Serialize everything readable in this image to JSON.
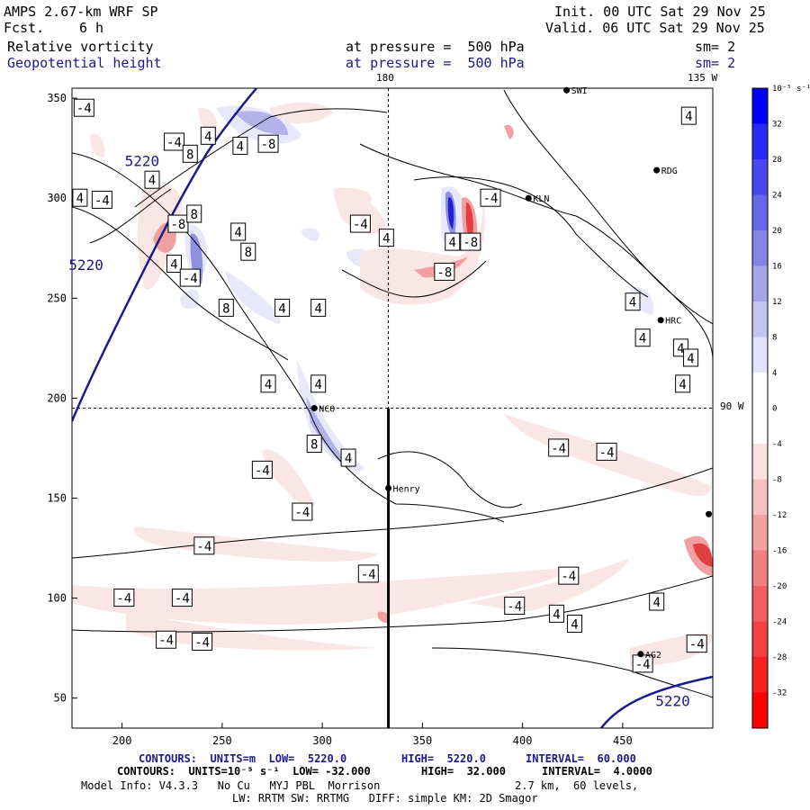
{
  "header": {
    "model": "AMPS 2.67-km WRF SP",
    "fcst_label": "Fcst.",
    "fcst_value": "6 h",
    "init": "Init. 00 UTC Sat 29 Nov 25",
    "valid": "Valid. 06 UTC Sat 29 Nov 25",
    "field1": "Relative vorticity",
    "field2": "Geopotential height",
    "pressure1": "at pressure =  500 hPa",
    "pressure2": "at pressure =  500 hPa",
    "smooth1": "sm= 2",
    "smooth2": "sm= 2"
  },
  "map_labels": {
    "lon_top": "180",
    "lon_top_right": "135 W",
    "lat_right": "90 W"
  },
  "stations": [
    {
      "name": "NCO",
      "x": 296,
      "y": 195
    },
    {
      "name": "Henry",
      "x": 333,
      "y": 155
    },
    {
      "name": "KLN",
      "x": 403,
      "y": 300
    },
    {
      "name": "RDG",
      "x": 467,
      "y": 314
    },
    {
      "name": "HRC",
      "x": 469,
      "y": 239
    },
    {
      "name": "AG2",
      "x": 459,
      "y": 72
    },
    {
      "name": "SWI",
      "x": 422,
      "y": 354
    },
    {
      "name": "",
      "x": 493,
      "y": 142
    }
  ],
  "chart_data": {
    "type": "heatmap",
    "title": "Relative vorticity / Geopotential height at 500 hPa",
    "xlim": [
      175,
      495
    ],
    "ylim": [
      35,
      355
    ],
    "x_ticks": [
      200,
      250,
      300,
      350,
      400,
      450
    ],
    "y_ticks": [
      50,
      100,
      150,
      200,
      250,
      300,
      350
    ],
    "crosshair": {
      "x": 333,
      "y": 195
    },
    "vorticity_contour_labels": [
      {
        "v": "-4",
        "x": 181,
        "y": 345
      },
      {
        "v": "-4",
        "x": 226,
        "y": 328
      },
      {
        "v": "4",
        "x": 243,
        "y": 331
      },
      {
        "v": "4",
        "x": 259,
        "y": 326
      },
      {
        "v": "-8",
        "x": 273,
        "y": 327
      },
      {
        "v": "8",
        "x": 234,
        "y": 322
      },
      {
        "v": "4",
        "x": 215,
        "y": 309
      },
      {
        "v": "-4",
        "x": 190,
        "y": 299
      },
      {
        "v": "4",
        "x": 179,
        "y": 300
      },
      {
        "v": "-8",
        "x": 228,
        "y": 287
      },
      {
        "v": "8",
        "x": 236,
        "y": 292
      },
      {
        "v": "4",
        "x": 258,
        "y": 283
      },
      {
        "v": "8",
        "x": 263,
        "y": 273
      },
      {
        "v": "4",
        "x": 226,
        "y": 267
      },
      {
        "v": "-4",
        "x": 234,
        "y": 260
      },
      {
        "v": "8",
        "x": 252,
        "y": 245
      },
      {
        "v": "4",
        "x": 280,
        "y": 245
      },
      {
        "v": "4",
        "x": 298,
        "y": 245
      },
      {
        "v": "-4",
        "x": 319,
        "y": 287
      },
      {
        "v": "4",
        "x": 332,
        "y": 280
      },
      {
        "v": "4",
        "x": 365,
        "y": 278
      },
      {
        "v": "-8",
        "x": 374,
        "y": 278
      },
      {
        "v": "-4",
        "x": 384,
        "y": 300
      },
      {
        "v": "-8",
        "x": 361,
        "y": 263
      },
      {
        "v": "4",
        "x": 273,
        "y": 207
      },
      {
        "v": "4",
        "x": 298,
        "y": 207
      },
      {
        "v": "8",
        "x": 296,
        "y": 177
      },
      {
        "v": "4",
        "x": 313,
        "y": 170
      },
      {
        "v": "-4",
        "x": 270,
        "y": 164
      },
      {
        "v": "-4",
        "x": 290,
        "y": 143
      },
      {
        "v": "-4",
        "x": 241,
        "y": 126
      },
      {
        "v": "-4",
        "x": 323,
        "y": 112
      },
      {
        "v": "-4",
        "x": 201,
        "y": 100
      },
      {
        "v": "-4",
        "x": 230,
        "y": 100
      },
      {
        "v": "-4",
        "x": 222,
        "y": 79
      },
      {
        "v": "-4",
        "x": 240,
        "y": 78
      },
      {
        "v": "-4",
        "x": 418,
        "y": 175
      },
      {
        "v": "-4",
        "x": 442,
        "y": 173
      },
      {
        "v": "-4",
        "x": 423,
        "y": 111
      },
      {
        "v": "-4",
        "x": 396,
        "y": 96
      },
      {
        "v": "4",
        "x": 467,
        "y": 98
      },
      {
        "v": "4",
        "x": 417,
        "y": 92
      },
      {
        "v": "4",
        "x": 426,
        "y": 87
      },
      {
        "v": "-4",
        "x": 460,
        "y": 67
      },
      {
        "v": "-4",
        "x": 487,
        "y": 77
      },
      {
        "v": "4",
        "x": 455,
        "y": 248
      },
      {
        "v": "4",
        "x": 460,
        "y": 230
      },
      {
        "v": "4",
        "x": 479,
        "y": 225
      },
      {
        "v": "4",
        "x": 484,
        "y": 220
      },
      {
        "v": "4",
        "x": 480,
        "y": 207
      },
      {
        "v": "4",
        "x": 483,
        "y": 341
      }
    ],
    "height_contour_labels": [
      {
        "v": "5220",
        "x": 210,
        "y": 316
      },
      {
        "v": "5220",
        "x": 182,
        "y": 264
      },
      {
        "v": "5220",
        "x": 475,
        "y": 46
      }
    ],
    "colorbar": {
      "unit": "10⁻⁵ s⁻¹",
      "ticks": [
        "32",
        "28",
        "24",
        "20",
        "16",
        "12",
        "8",
        "4",
        "0",
        "-4",
        "-8",
        "-12",
        "-16",
        "-20",
        "-24",
        "-28",
        "-32"
      ]
    }
  },
  "footer": {
    "line1a": "CONTOURS:  UNITS=m  LOW=  5220.0",
    "line1b": "HIGH=  5220.0",
    "line1c": "INTERVAL=  60.000",
    "line2a": "CONTOURS:  UNITS=10⁻⁵ s⁻¹  LOW= -32.000",
    "line2b": "HIGH=  32.000",
    "line2c": "INTERVAL=  4.0000",
    "line3a": "Model Info: V4.3.3   No Cu   MYJ PBL  Morrison",
    "line3b": "2.7 km,  60 levels,",
    "line4": "LW: RRTM SW: RRTMG   DIFF: simple KM: 2D Smagor"
  },
  "colors": {
    "blue_text": "#1a1a8c",
    "height_line": "#1a1a8c",
    "pos_light": "#e8e8fb",
    "pos_mid": "#9090e0",
    "pos_dark": "#2020d0",
    "neg_light": "#fbe6e6",
    "neg_mid": "#f0a0a0",
    "neg_dark": "#e04040"
  }
}
